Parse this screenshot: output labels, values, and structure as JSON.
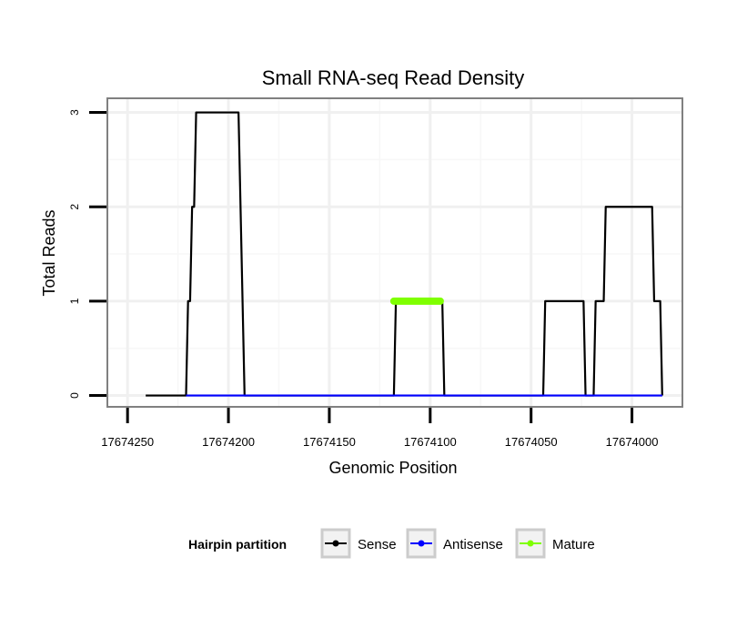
{
  "chart_data": {
    "type": "line",
    "title": "Small RNA-seq Read Density",
    "xlabel": "Genomic Position",
    "ylabel": "Total Reads",
    "x_reversed": true,
    "xlim": [
      17674260,
      17673975
    ],
    "ylim": [
      -0.12,
      3.15
    ],
    "x_ticks": [
      17674250,
      17674200,
      17674150,
      17674100,
      17674050,
      17674000
    ],
    "x_tick_labels": [
      "17674250",
      "17674200",
      "17674150",
      "17674100",
      "17674050",
      "17674000"
    ],
    "y_ticks": [
      0,
      1,
      2,
      3
    ],
    "y_tick_labels": [
      "0",
      "1",
      "2",
      "3"
    ],
    "grid": true,
    "legend": {
      "title": "Hairpin partition",
      "position": "bottom",
      "entries": [
        "Sense",
        "Antisense",
        "Mature"
      ]
    },
    "series": [
      {
        "name": "Sense",
        "color": "#000000",
        "x": [
          17674241,
          17674221,
          17674220,
          17674219,
          17674218,
          17674217,
          17674216,
          17674195,
          17674192,
          17674118,
          17674117,
          17674094,
          17674093,
          17674044,
          17674043,
          17674024,
          17674023,
          17674019,
          17674018,
          17674014,
          17674013,
          17674008,
          17674007,
          17673990,
          17673989,
          17673986,
          17673985
        ],
        "values": [
          0,
          0,
          1,
          1,
          2,
          2,
          3,
          3,
          0,
          0,
          1,
          1,
          0,
          0,
          1,
          1,
          0,
          0,
          1,
          1,
          2,
          2,
          2,
          2,
          1,
          1,
          0
        ]
      },
      {
        "name": "Antisense",
        "color": "#0000ff",
        "x": [
          17674221,
          17673985
        ],
        "values": [
          0,
          0
        ]
      },
      {
        "name": "Mature",
        "color": "#7fff00",
        "x": [
          17674118,
          17674095
        ],
        "values": [
          1,
          1
        ]
      }
    ]
  }
}
